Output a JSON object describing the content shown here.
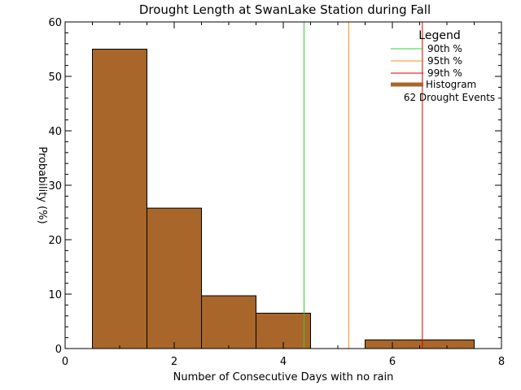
{
  "chart_data": {
    "type": "bar",
    "title": "Drought Length at SwanLake Station during Fall",
    "xlabel": "Number of Consecutive Days with no rain",
    "ylabel": "Probability (%)",
    "xlim": [
      0,
      8
    ],
    "ylim": [
      0,
      60
    ],
    "x_ticks": [
      "0",
      "2",
      "4",
      "6",
      "8"
    ],
    "y_ticks": [
      "0",
      "10",
      "20",
      "30",
      "40",
      "50",
      "60"
    ],
    "bins": [
      {
        "x0": 0.5,
        "x1": 1.5,
        "value": 55.0
      },
      {
        "x0": 1.5,
        "x1": 2.5,
        "value": 25.8
      },
      {
        "x0": 2.5,
        "x1": 3.5,
        "value": 9.7
      },
      {
        "x0": 3.5,
        "x1": 4.5,
        "value": 6.5
      },
      {
        "x0": 5.5,
        "x1": 7.5,
        "value": 1.6
      }
    ],
    "bar_color": "#a9662a",
    "percentile_lines": [
      {
        "name": "90th %",
        "x": 4.38,
        "color": "#33cc33"
      },
      {
        "name": "95th %",
        "x": 5.2,
        "color": "#ff8c1a"
      },
      {
        "name": "99th %",
        "x": 6.55,
        "color": "#dd0000"
      }
    ],
    "legend": {
      "title": "Legend",
      "placement": "top-right",
      "histogram_label": "Histogram",
      "events_label": "62 Drought Events"
    },
    "grid": false
  }
}
